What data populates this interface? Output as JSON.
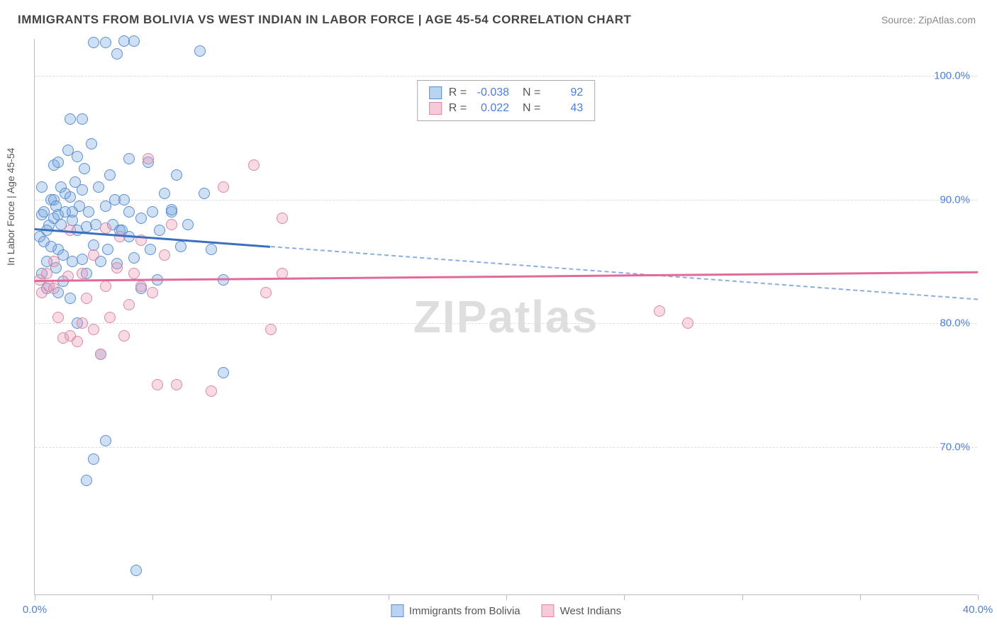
{
  "title": "IMMIGRANTS FROM BOLIVIA VS WEST INDIAN IN LABOR FORCE | AGE 45-54 CORRELATION CHART",
  "source": "Source: ZipAtlas.com",
  "watermark": "ZIPatlas",
  "y_axis_label": "In Labor Force | Age 45-54",
  "axes": {
    "x": {
      "min": 0,
      "max": 40,
      "ticks": [
        0,
        10,
        20,
        30,
        40
      ],
      "tick_labels": [
        "0.0%",
        "",
        "",
        "",
        "40.0%"
      ],
      "minor_ticks": [
        5,
        15,
        25,
        35
      ]
    },
    "y": {
      "min": 58,
      "max": 103,
      "ticks": [
        70,
        80,
        90,
        100
      ],
      "tick_labels": [
        "70.0%",
        "80.0%",
        "90.0%",
        "100.0%"
      ]
    }
  },
  "grid_color": "#dddddd",
  "axis_color": "#bbbbbb",
  "label_color": "#4a7fd8",
  "series": [
    {
      "name": "Immigrants from Bolivia",
      "color_fill": "rgba(118,167,224,0.35)",
      "color_stroke": "#5b8fd0",
      "class": "series-blue",
      "R": "-0.038",
      "N": "92",
      "trend": {
        "y_at_x0": 87.7,
        "y_at_x40": 82.0,
        "solid_until_x": 10
      },
      "points": [
        [
          0.2,
          87.0
        ],
        [
          0.3,
          88.8
        ],
        [
          0.4,
          86.6
        ],
        [
          0.5,
          85.0
        ],
        [
          0.6,
          87.9
        ],
        [
          0.7,
          90.0
        ],
        [
          0.8,
          88.5
        ],
        [
          0.8,
          92.8
        ],
        [
          0.9,
          84.5
        ],
        [
          1.0,
          93.0
        ],
        [
          1.0,
          86.0
        ],
        [
          1.0,
          88.8
        ],
        [
          1.1,
          91.0
        ],
        [
          1.2,
          85.5
        ],
        [
          1.3,
          89.0
        ],
        [
          1.4,
          94.0
        ],
        [
          1.5,
          96.5
        ],
        [
          1.5,
          90.2
        ],
        [
          1.6,
          85.0
        ],
        [
          1.6,
          88.3
        ],
        [
          1.7,
          91.4
        ],
        [
          1.8,
          87.5
        ],
        [
          1.8,
          93.5
        ],
        [
          1.9,
          89.5
        ],
        [
          2.0,
          85.2
        ],
        [
          2.0,
          90.8
        ],
        [
          2.1,
          92.5
        ],
        [
          2.2,
          84.0
        ],
        [
          2.2,
          87.8
        ],
        [
          2.3,
          89.0
        ],
        [
          2.4,
          94.5
        ],
        [
          2.5,
          86.3
        ],
        [
          2.5,
          102.7
        ],
        [
          2.6,
          88.0
        ],
        [
          2.7,
          91.0
        ],
        [
          2.8,
          85.0
        ],
        [
          3.0,
          89.5
        ],
        [
          3.0,
          102.7
        ],
        [
          3.1,
          86.0
        ],
        [
          3.2,
          92.0
        ],
        [
          3.3,
          88.0
        ],
        [
          3.4,
          90.0
        ],
        [
          3.5,
          84.8
        ],
        [
          3.5,
          101.8
        ],
        [
          3.6,
          87.5
        ],
        [
          3.8,
          90.0
        ],
        [
          3.8,
          102.8
        ],
        [
          4.0,
          89.0
        ],
        [
          4.0,
          93.3
        ],
        [
          4.2,
          85.3
        ],
        [
          4.2,
          102.8
        ],
        [
          4.3,
          60.0
        ],
        [
          4.5,
          88.5
        ],
        [
          4.8,
          93.0
        ],
        [
          4.9,
          86.0
        ],
        [
          5.0,
          89.0
        ],
        [
          5.2,
          83.5
        ],
        [
          5.3,
          87.5
        ],
        [
          5.5,
          90.5
        ],
        [
          5.8,
          89.0
        ],
        [
          6.0,
          92.0
        ],
        [
          6.5,
          88.0
        ],
        [
          7.0,
          102.0
        ],
        [
          7.2,
          90.5
        ],
        [
          7.5,
          86.0
        ],
        [
          8.0,
          76.0
        ],
        [
          8.0,
          83.5
        ],
        [
          2.0,
          96.5
        ],
        [
          2.5,
          69.0
        ],
        [
          3.0,
          70.5
        ],
        [
          2.8,
          77.5
        ],
        [
          2.2,
          67.3
        ],
        [
          1.0,
          82.5
        ],
        [
          1.2,
          83.4
        ],
        [
          0.5,
          82.8
        ],
        [
          0.8,
          90.0
        ],
        [
          0.3,
          91.0
        ],
        [
          0.3,
          84.0
        ],
        [
          0.4,
          89.0
        ],
        [
          1.5,
          82.0
        ],
        [
          1.8,
          80.0
        ],
        [
          5.8,
          89.2
        ],
        [
          6.2,
          86.2
        ],
        [
          4.5,
          82.8
        ],
        [
          4.0,
          87.0
        ],
        [
          3.7,
          87.5
        ],
        [
          0.5,
          87.5
        ],
        [
          0.7,
          86.2
        ],
        [
          1.1,
          88.0
        ],
        [
          0.9,
          89.5
        ],
        [
          1.3,
          90.5
        ],
        [
          1.6,
          89.0
        ]
      ]
    },
    {
      "name": "West Indians",
      "color_fill": "rgba(235,150,180,0.35)",
      "color_stroke": "#d988a8",
      "class": "series-pink",
      "R": "0.022",
      "N": "43",
      "trend": {
        "y_at_x0": 83.5,
        "y_at_x40": 84.2,
        "solid_until_x": 40
      },
      "points": [
        [
          0.2,
          83.5
        ],
        [
          0.3,
          82.5
        ],
        [
          0.5,
          84.0
        ],
        [
          0.6,
          83.0
        ],
        [
          0.8,
          82.8
        ],
        [
          0.8,
          85.0
        ],
        [
          1.0,
          80.5
        ],
        [
          1.2,
          78.8
        ],
        [
          1.4,
          83.8
        ],
        [
          1.5,
          79.0
        ],
        [
          1.8,
          78.5
        ],
        [
          2.0,
          80.0
        ],
        [
          2.0,
          84.0
        ],
        [
          2.2,
          82.0
        ],
        [
          2.5,
          85.5
        ],
        [
          2.5,
          79.5
        ],
        [
          2.8,
          77.5
        ],
        [
          3.0,
          83.0
        ],
        [
          3.0,
          87.7
        ],
        [
          3.2,
          80.5
        ],
        [
          3.5,
          84.5
        ],
        [
          3.6,
          87.0
        ],
        [
          3.8,
          79.0
        ],
        [
          4.0,
          81.5
        ],
        [
          4.2,
          84.0
        ],
        [
          4.5,
          83.0
        ],
        [
          4.5,
          86.7
        ],
        [
          4.8,
          93.3
        ],
        [
          5.0,
          82.5
        ],
        [
          5.2,
          75.0
        ],
        [
          5.5,
          85.5
        ],
        [
          5.8,
          88.0
        ],
        [
          6.0,
          75.0
        ],
        [
          7.5,
          74.5
        ],
        [
          8.0,
          91.0
        ],
        [
          9.3,
          92.8
        ],
        [
          9.8,
          82.5
        ],
        [
          10.5,
          84.0
        ],
        [
          10.0,
          79.5
        ],
        [
          26.5,
          81.0
        ],
        [
          27.7,
          80.0
        ],
        [
          10.5,
          88.5
        ],
        [
          1.5,
          87.5
        ]
      ]
    }
  ],
  "legend_bottom": [
    "Immigrants from Bolivia",
    "West Indians"
  ]
}
